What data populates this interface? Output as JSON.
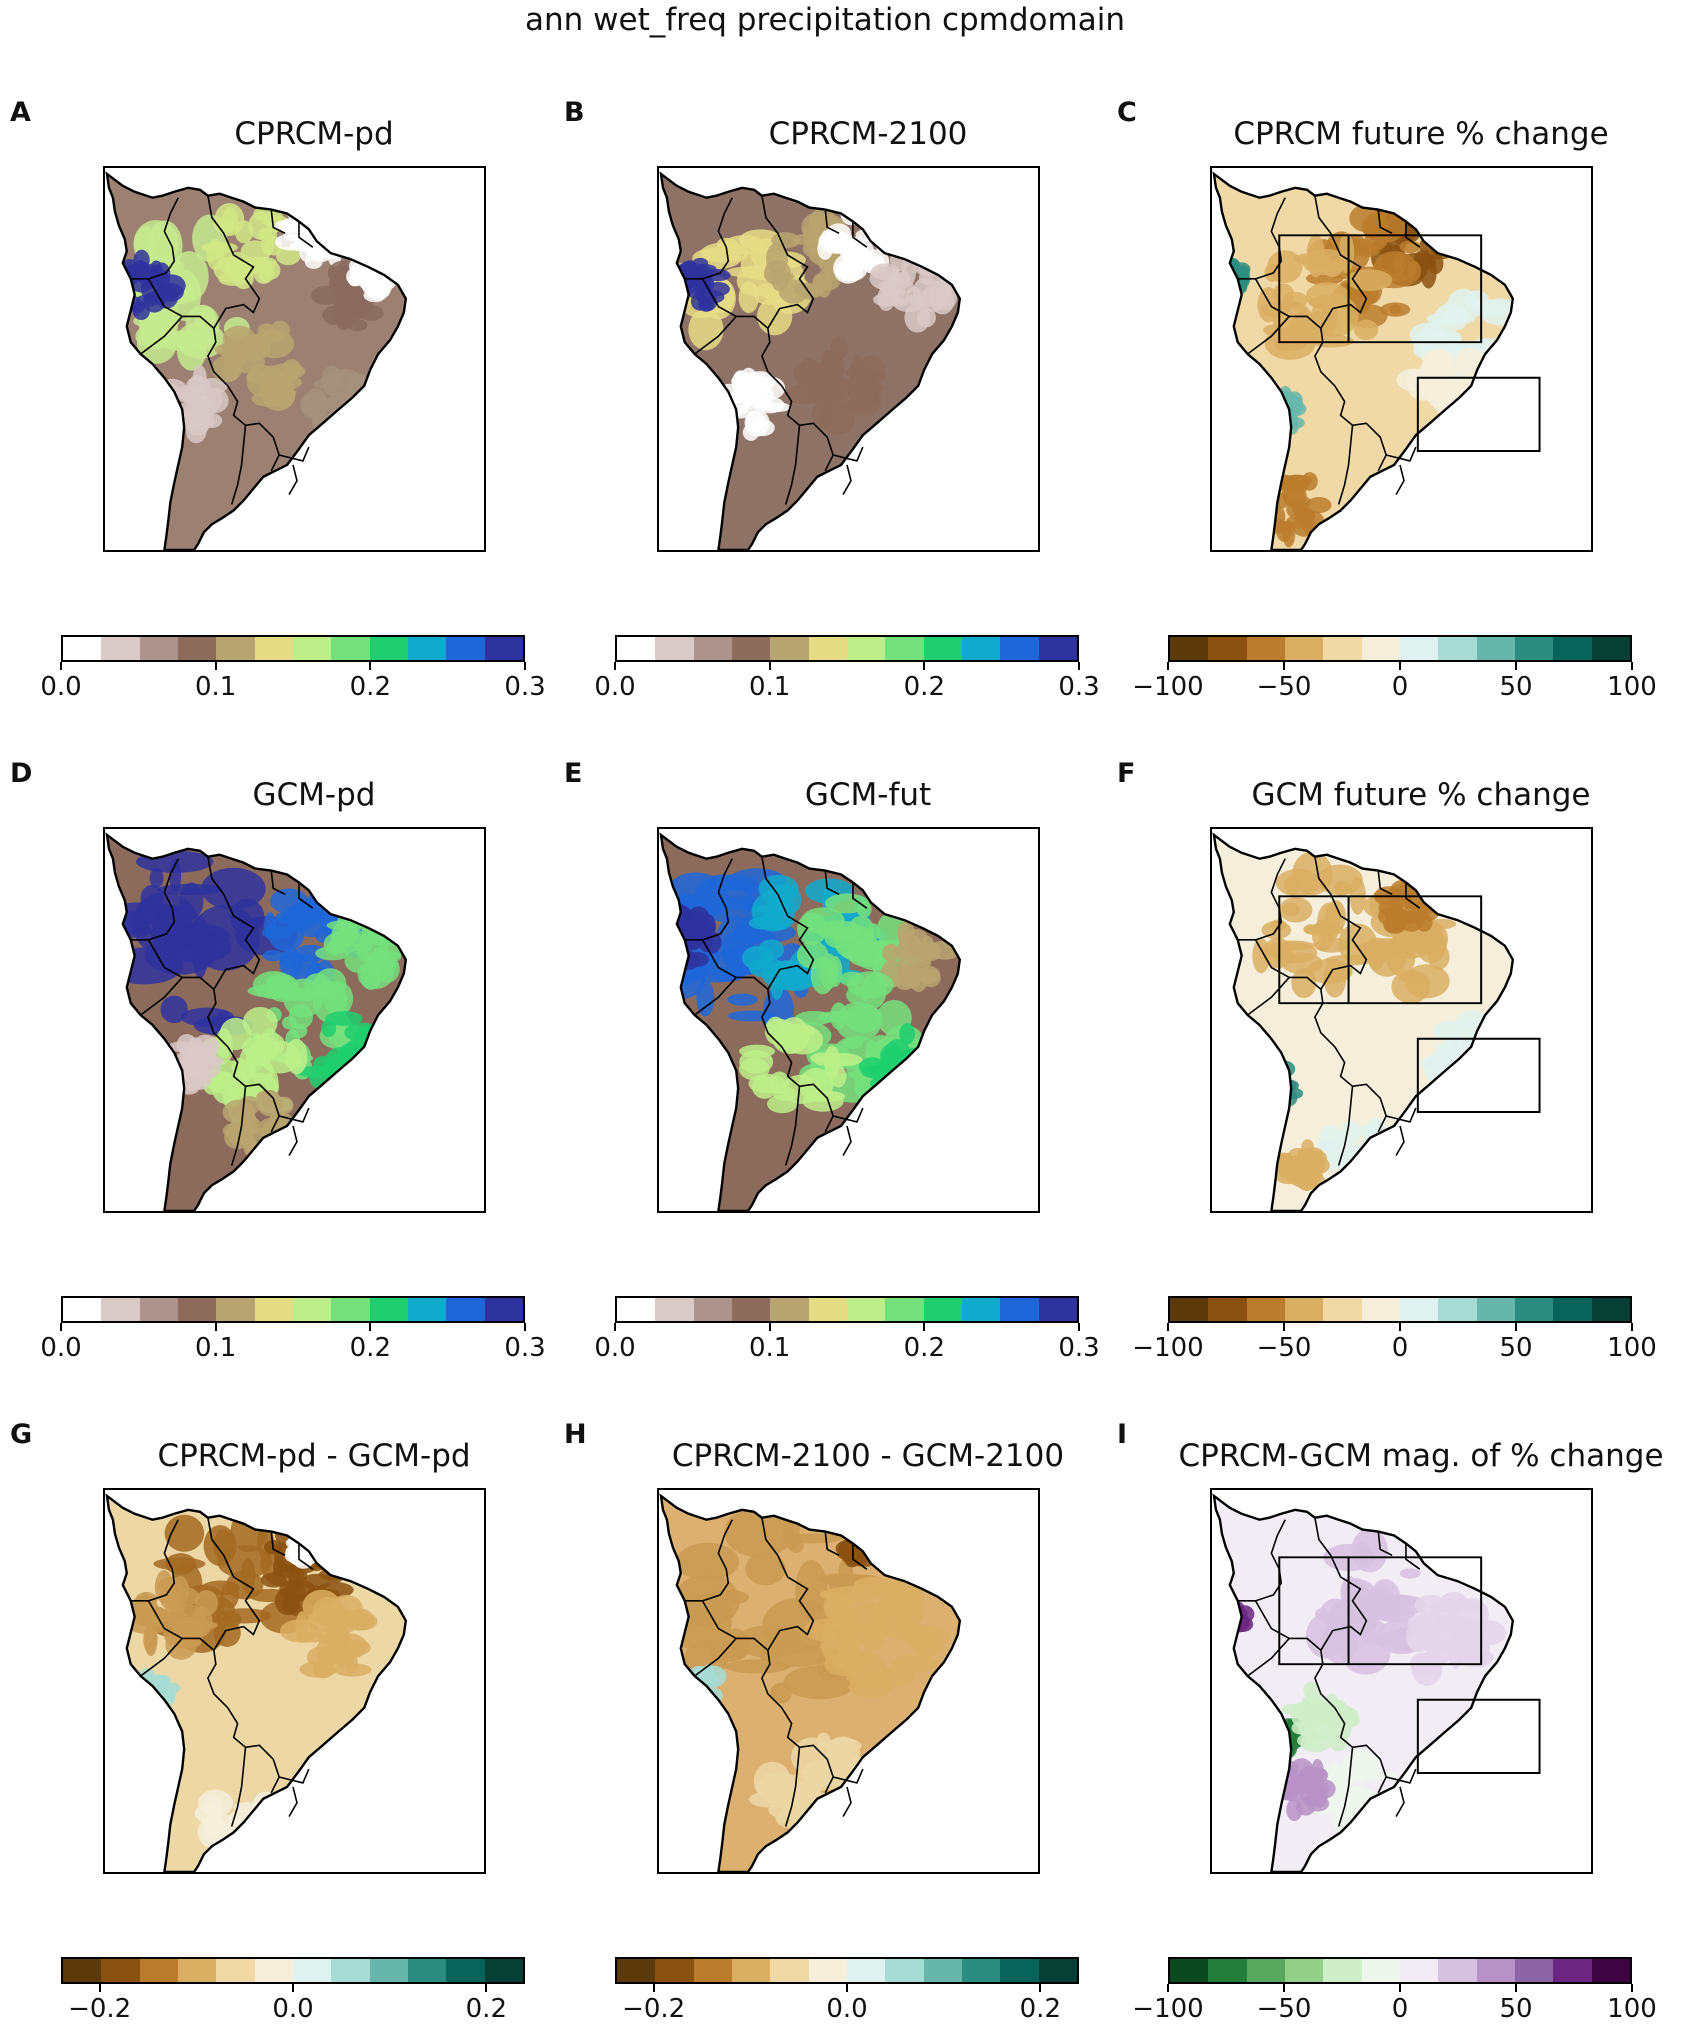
{
  "title": "ann wet_freq precipitation cpmdomain",
  "panels": [
    {
      "letter": "A",
      "title": "CPRCM-pd",
      "scheme": "terrain_pd_cprcm",
      "boxes": false
    },
    {
      "letter": "B",
      "title": "CPRCM-2100",
      "scheme": "terrain_fut_cprcm",
      "boxes": false
    },
    {
      "letter": "C",
      "title": "CPRCM future % change",
      "scheme": "brbg_change_cprcm",
      "boxes": true
    },
    {
      "letter": "D",
      "title": "GCM-pd",
      "scheme": "terrain_pd_gcm",
      "boxes": false
    },
    {
      "letter": "E",
      "title": "GCM-fut",
      "scheme": "terrain_fut_gcm",
      "boxes": false
    },
    {
      "letter": "F",
      "title": "GCM future % change",
      "scheme": "brbg_change_gcm",
      "boxes": true
    },
    {
      "letter": "G",
      "title": "CPRCM-pd - GCM-pd",
      "scheme": "brbg_diff_pd",
      "boxes": false
    },
    {
      "letter": "H",
      "title": "CPRCM-2100 - GCM-2100",
      "scheme": "brbg_diff_fut",
      "boxes": false
    },
    {
      "letter": "I",
      "title": "CPRCM-GCM mag. of % change",
      "scheme": "prgn_mag",
      "boxes": true
    }
  ],
  "colorbars": {
    "terrain": {
      "colors": [
        "#ffffff",
        "#d9c9c7",
        "#ac938c",
        "#8c6b5c",
        "#b8a470",
        "#e6dc86",
        "#bdee8a",
        "#74e07c",
        "#1fcf6f",
        "#11aacd",
        "#1f67d8",
        "#2f339e"
      ],
      "ticks": [
        "0.0",
        "0.1",
        "0.2",
        "0.3"
      ]
    },
    "brbg_pct": {
      "colors": [
        "#5c3a0b",
        "#8b5110",
        "#bb7d2d",
        "#d9ae63",
        "#f0d9a6",
        "#f5eedb",
        "#e0f2ef",
        "#a6dcd3",
        "#66b7aa",
        "#2c8c80",
        "#07645b",
        "#063f33"
      ],
      "ticks": [
        "−100",
        "−50",
        "0",
        "50",
        "100"
      ]
    },
    "brbg_diff": {
      "colors": [
        "#5c3a0b",
        "#8b5110",
        "#bb7d2d",
        "#d9ae63",
        "#f0d9a6",
        "#f5eedb",
        "#e0f2ef",
        "#a6dcd3",
        "#66b7aa",
        "#2c8c80",
        "#07645b",
        "#063f33"
      ],
      "ticks": [
        "−0.2",
        "0.0",
        "0.2"
      ]
    },
    "prgn": {
      "colors": [
        "#0b4a21",
        "#237d3b",
        "#57a85e",
        "#93cf88",
        "#cfedc8",
        "#eef6ec",
        "#f2ecf5",
        "#d7c1e0",
        "#b792c6",
        "#8c64a6",
        "#6c2681",
        "#3d0441"
      ],
      "ticks": [
        "−100",
        "−50",
        "0",
        "50",
        "100"
      ]
    }
  }
}
